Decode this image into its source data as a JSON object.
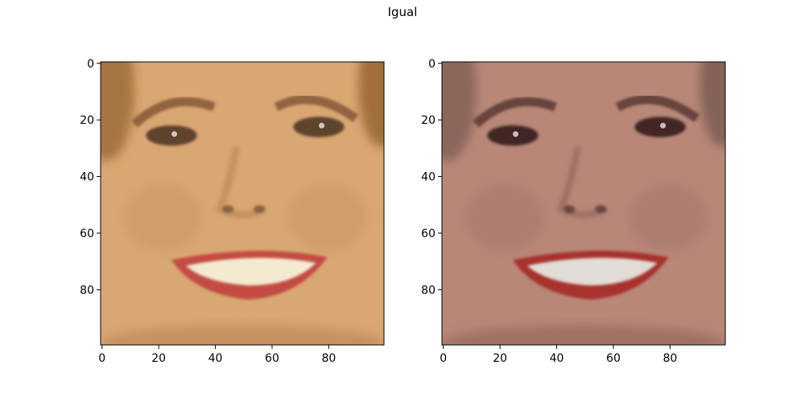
{
  "figure": {
    "title": "Igual"
  },
  "panels": [
    {
      "name": "left-face",
      "xlim": [
        0,
        99
      ],
      "ylim": [
        0,
        99
      ],
      "x_ticks": [
        0,
        20,
        40,
        60,
        80
      ],
      "y_ticks": [
        0,
        20,
        40,
        60,
        80
      ],
      "tone": {
        "skin": "#d9a772",
        "skin_dark": "#b98455",
        "hair": "#9a6b35",
        "lip": "#c44b43",
        "teeth": "#f3ead0",
        "eye": "#4a3020",
        "brow": "#7a4d2e"
      }
    },
    {
      "name": "right-face",
      "xlim": [
        0,
        99
      ],
      "ylim": [
        0,
        99
      ],
      "x_ticks": [
        0,
        20,
        40,
        60,
        80
      ],
      "y_ticks": [
        0,
        20,
        40,
        60,
        80
      ],
      "tone": {
        "skin": "#b88778",
        "skin_dark": "#8f6458",
        "hair": "#7f5f55",
        "lip": "#a8332e",
        "teeth": "#e2dcd6",
        "eye": "#2e1812",
        "brow": "#4e2f2a"
      }
    }
  ]
}
